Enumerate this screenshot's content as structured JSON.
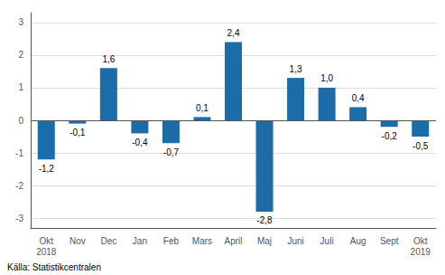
{
  "chart_data": {
    "type": "bar",
    "categories": [
      "Okt\n2018",
      "Nov",
      "Dec",
      "Jan",
      "Feb",
      "Mars",
      "April",
      "Maj",
      "Juni",
      "Juli",
      "Aug",
      "Sept",
      "Okt\n2019"
    ],
    "values": [
      -1.2,
      -0.1,
      1.6,
      -0.4,
      -0.7,
      0.1,
      2.4,
      -2.8,
      1.3,
      1.0,
      0.4,
      -0.2,
      -0.5
    ],
    "value_labels": [
      "-1,2",
      "-0,1",
      "1,6",
      "-0,4",
      "-0,7",
      "0,1",
      "2,4",
      "-2,8",
      "1,3",
      "1,0",
      "0,4",
      "-0,2",
      "-0,5"
    ],
    "data_labels": true,
    "color": "#1b6ca8",
    "ylim": [
      -3.3,
      3.3
    ],
    "yticks": [
      -3,
      -2,
      -1,
      0,
      1,
      2,
      3
    ],
    "grid": true,
    "annotations": [
      "Källa: Statistikcentralen"
    ]
  }
}
